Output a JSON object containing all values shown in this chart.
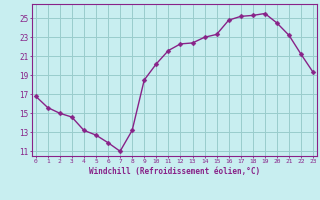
{
  "x": [
    0,
    1,
    2,
    3,
    4,
    5,
    6,
    7,
    8,
    9,
    10,
    11,
    12,
    13,
    14,
    15,
    16,
    17,
    18,
    19,
    20,
    21,
    22,
    23
  ],
  "y": [
    16.8,
    15.6,
    15.0,
    14.6,
    13.2,
    12.7,
    11.9,
    11.0,
    13.2,
    18.5,
    20.2,
    21.6,
    22.3,
    22.4,
    23.0,
    23.3,
    24.8,
    25.2,
    25.3,
    25.5,
    24.5,
    23.2,
    21.2,
    19.3
  ],
  "line_color": "#882288",
  "marker_color": "#882288",
  "bg_color": "#c8eef0",
  "grid_color": "#99cccc",
  "xlabel": "Windchill (Refroidissement éolien,°C)",
  "ylim": [
    10.5,
    26.5
  ],
  "yticks": [
    11,
    13,
    15,
    17,
    19,
    21,
    23,
    25
  ],
  "xticks": [
    0,
    1,
    2,
    3,
    4,
    5,
    6,
    7,
    8,
    9,
    10,
    11,
    12,
    13,
    14,
    15,
    16,
    17,
    18,
    19,
    20,
    21,
    22,
    23
  ],
  "xlim": [
    -0.3,
    23.3
  ],
  "tick_color": "#882288",
  "label_color": "#882288",
  "line_width": 1.0,
  "marker_size": 2.5,
  "xtick_fontsize": 4.5,
  "ytick_fontsize": 5.5,
  "xlabel_fontsize": 5.5
}
